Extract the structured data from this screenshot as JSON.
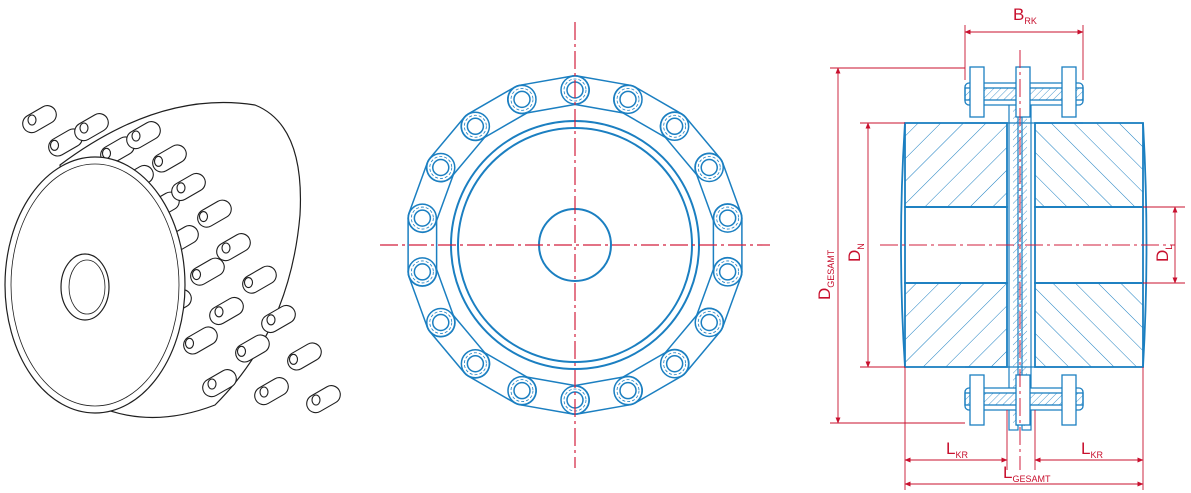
{
  "figure": {
    "views": [
      "isometric-view",
      "front-view",
      "section-view"
    ],
    "colors": {
      "outline": "#1f1f1f",
      "part_line": "#1b7fc1",
      "dimension": "#c8102e",
      "center_line": "#d21f3c",
      "background": "#ffffff"
    }
  },
  "dimensions": {
    "b_rk": {
      "main": "B",
      "sub": "RK"
    },
    "d_gesamt": {
      "main": "D",
      "sub": "GESAMT"
    },
    "d_n": {
      "main": "D",
      "sub": "N"
    },
    "d_l": {
      "main": "D",
      "sub": "L"
    },
    "l_kr_left": {
      "main": "L",
      "sub": "KR"
    },
    "l_kr_right": {
      "main": "L",
      "sub": "KR"
    },
    "l_gesamt": {
      "main": "L",
      "sub": "GESAMT"
    }
  },
  "front_view": {
    "chain_roller_count": 18
  }
}
